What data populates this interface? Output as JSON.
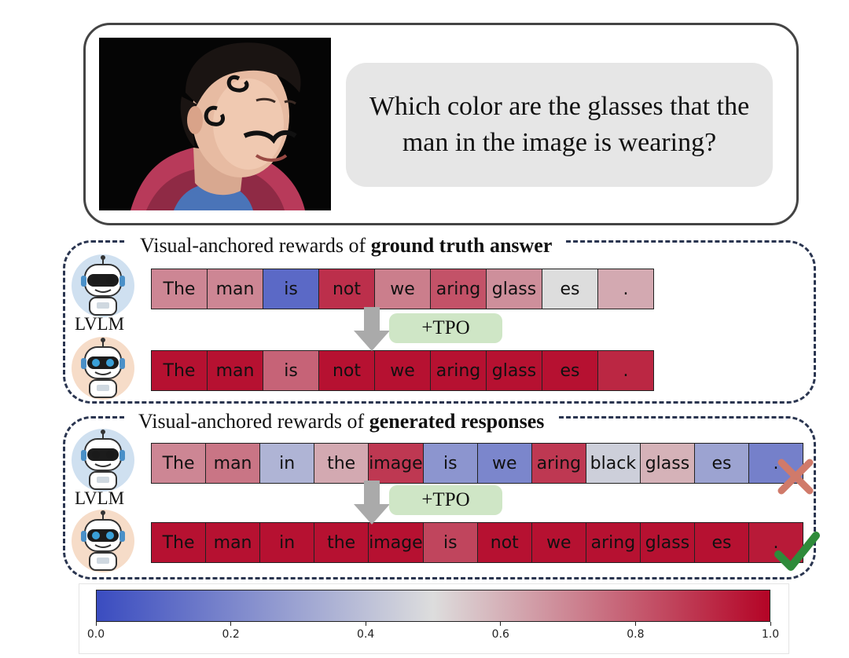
{
  "question": "Which color are the glasses that the man in the image is wearing?",
  "sections": [
    {
      "title_plain": "Visual-anchored rewards of ",
      "title_bold": "ground truth answer",
      "model_label": "LVLM",
      "tpo_label": "+TPO",
      "before_tokens": [
        {
          "text": "The",
          "value": 0.7
        },
        {
          "text": "man",
          "value": 0.7
        },
        {
          "text": "is",
          "value": 0.1
        },
        {
          "text": "not",
          "value": 0.9
        },
        {
          "text": "we",
          "value": 0.72
        },
        {
          "text": "aring",
          "value": 0.82
        },
        {
          "text": "glass",
          "value": 0.68
        },
        {
          "text": "es",
          "value": 0.5
        },
        {
          "text": ".",
          "value": 0.62
        }
      ],
      "after_tokens": [
        {
          "text": "The",
          "value": 0.97
        },
        {
          "text": "man",
          "value": 0.97
        },
        {
          "text": "is",
          "value": 0.78
        },
        {
          "text": "not",
          "value": 0.97
        },
        {
          "text": "we",
          "value": 0.97
        },
        {
          "text": "aring",
          "value": 0.97
        },
        {
          "text": "glass",
          "value": 0.97
        },
        {
          "text": "es",
          "value": 0.97
        },
        {
          "text": ".",
          "value": 0.92
        }
      ]
    },
    {
      "title_plain": "Visual-anchored rewards of ",
      "title_bold": "generated responses",
      "model_label": "LVLM",
      "tpo_label": "+TPO",
      "before_tokens": [
        {
          "text": "The",
          "value": 0.7
        },
        {
          "text": "man",
          "value": 0.74
        },
        {
          "text": "in",
          "value": 0.36
        },
        {
          "text": "the",
          "value": 0.62
        },
        {
          "text": "image",
          "value": 0.88
        },
        {
          "text": "is",
          "value": 0.25
        },
        {
          "text": "we",
          "value": 0.2
        },
        {
          "text": "aring",
          "value": 0.88
        },
        {
          "text": "black",
          "value": 0.45
        },
        {
          "text": "glass",
          "value": 0.6
        },
        {
          "text": "es",
          "value": 0.3
        },
        {
          "text": ".",
          "value": 0.18
        }
      ],
      "after_tokens": [
        {
          "text": "The",
          "value": 0.97
        },
        {
          "text": "man",
          "value": 0.97
        },
        {
          "text": "in",
          "value": 0.97
        },
        {
          "text": "the",
          "value": 0.97
        },
        {
          "text": "image",
          "value": 0.97
        },
        {
          "text": "is",
          "value": 0.85
        },
        {
          "text": "not",
          "value": 0.97
        },
        {
          "text": "we",
          "value": 0.97
        },
        {
          "text": "aring",
          "value": 0.97
        },
        {
          "text": "glass",
          "value": 0.97
        },
        {
          "text": "es",
          "value": 0.97
        },
        {
          "text": ".",
          "value": 0.95
        }
      ],
      "before_mark": "cross-icon",
      "after_mark": "checkmark-icon"
    }
  ],
  "colorbar": {
    "min": 0.0,
    "max": 1.0,
    "ticks": [
      "0.0",
      "0.2",
      "0.4",
      "0.6",
      "0.8",
      "1.0"
    ],
    "colors": [
      "#3a4cc0",
      "#dddddd",
      "#b40426"
    ]
  },
  "mark_colors": {
    "cross": "#d07a6a",
    "check": "#2e8b3a"
  }
}
